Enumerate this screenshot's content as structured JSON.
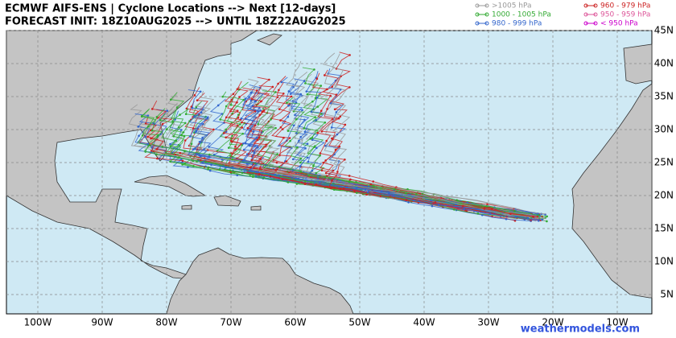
{
  "header": {
    "title": "ECMWF AIFS-ENS | Cyclone Locations --> Next [12-days]",
    "subtitle": "FORECAST INIT: 18Z10AUG2025 --> UNTIL 18Z22AUG2025"
  },
  "legend": [
    {
      "label": ">1005 hPa",
      "color": "#999999"
    },
    {
      "label": "960 - 979 hPa",
      "color": "#cc2222"
    },
    {
      "label": "1000 - 1005 hPa",
      "color": "#33aa33"
    },
    {
      "label": "950 - 959 hPa",
      "color": "#dd5599"
    },
    {
      "label": "980 - 999 hPa",
      "color": "#3366cc"
    },
    {
      "label": "< 950 hPa",
      "color": "#cc00cc"
    }
  ],
  "lon_labels": [
    "100W",
    "90W",
    "80W",
    "70W",
    "60W",
    "50W",
    "40W",
    "30W",
    "20W",
    "10W"
  ],
  "lat_labels": [
    "45N",
    "40N",
    "35N",
    "30N",
    "25N",
    "20N",
    "15N",
    "10N",
    "5N"
  ],
  "credit": "weathermodels.com"
}
